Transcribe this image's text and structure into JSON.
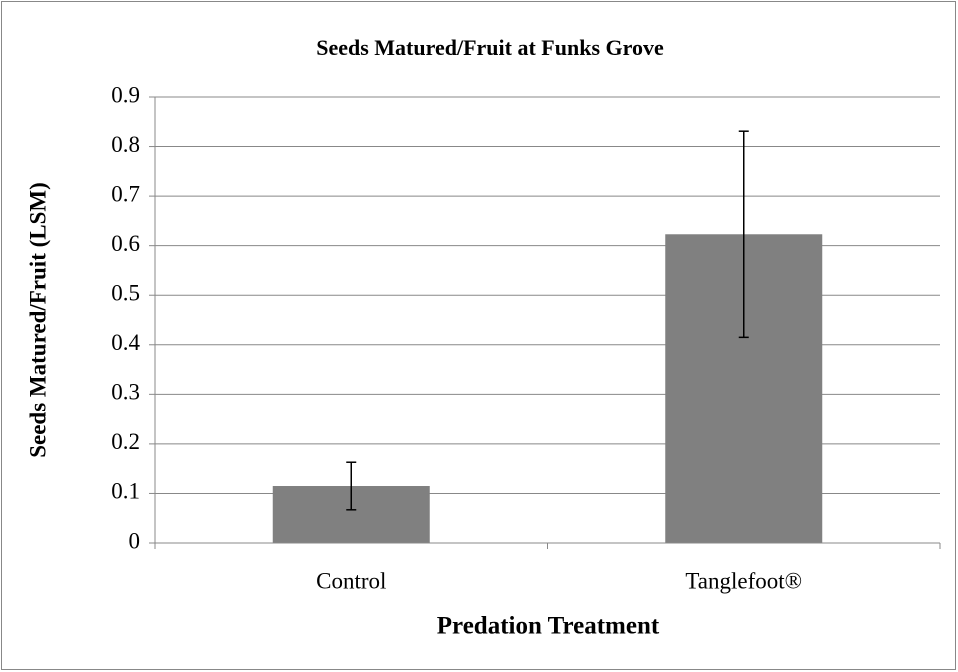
{
  "chart_data": {
    "type": "bar",
    "title": "Seeds Matured/Fruit at Funks Grove",
    "x_label": "Predation Treatment",
    "y_label": "Seeds Matured/Fruit (LSM)",
    "categories": [
      "Control",
      "Tanglefoot®"
    ],
    "values": [
      0.115,
      0.623
    ],
    "errors": [
      0.048,
      0.208
    ],
    "color": "#808080",
    "ylim": [
      0,
      0.9
    ],
    "yticks": [
      0,
      0.1,
      0.2,
      0.3,
      0.4,
      0.5,
      0.6,
      0.7,
      0.8,
      0.9
    ],
    "grid": true
  }
}
